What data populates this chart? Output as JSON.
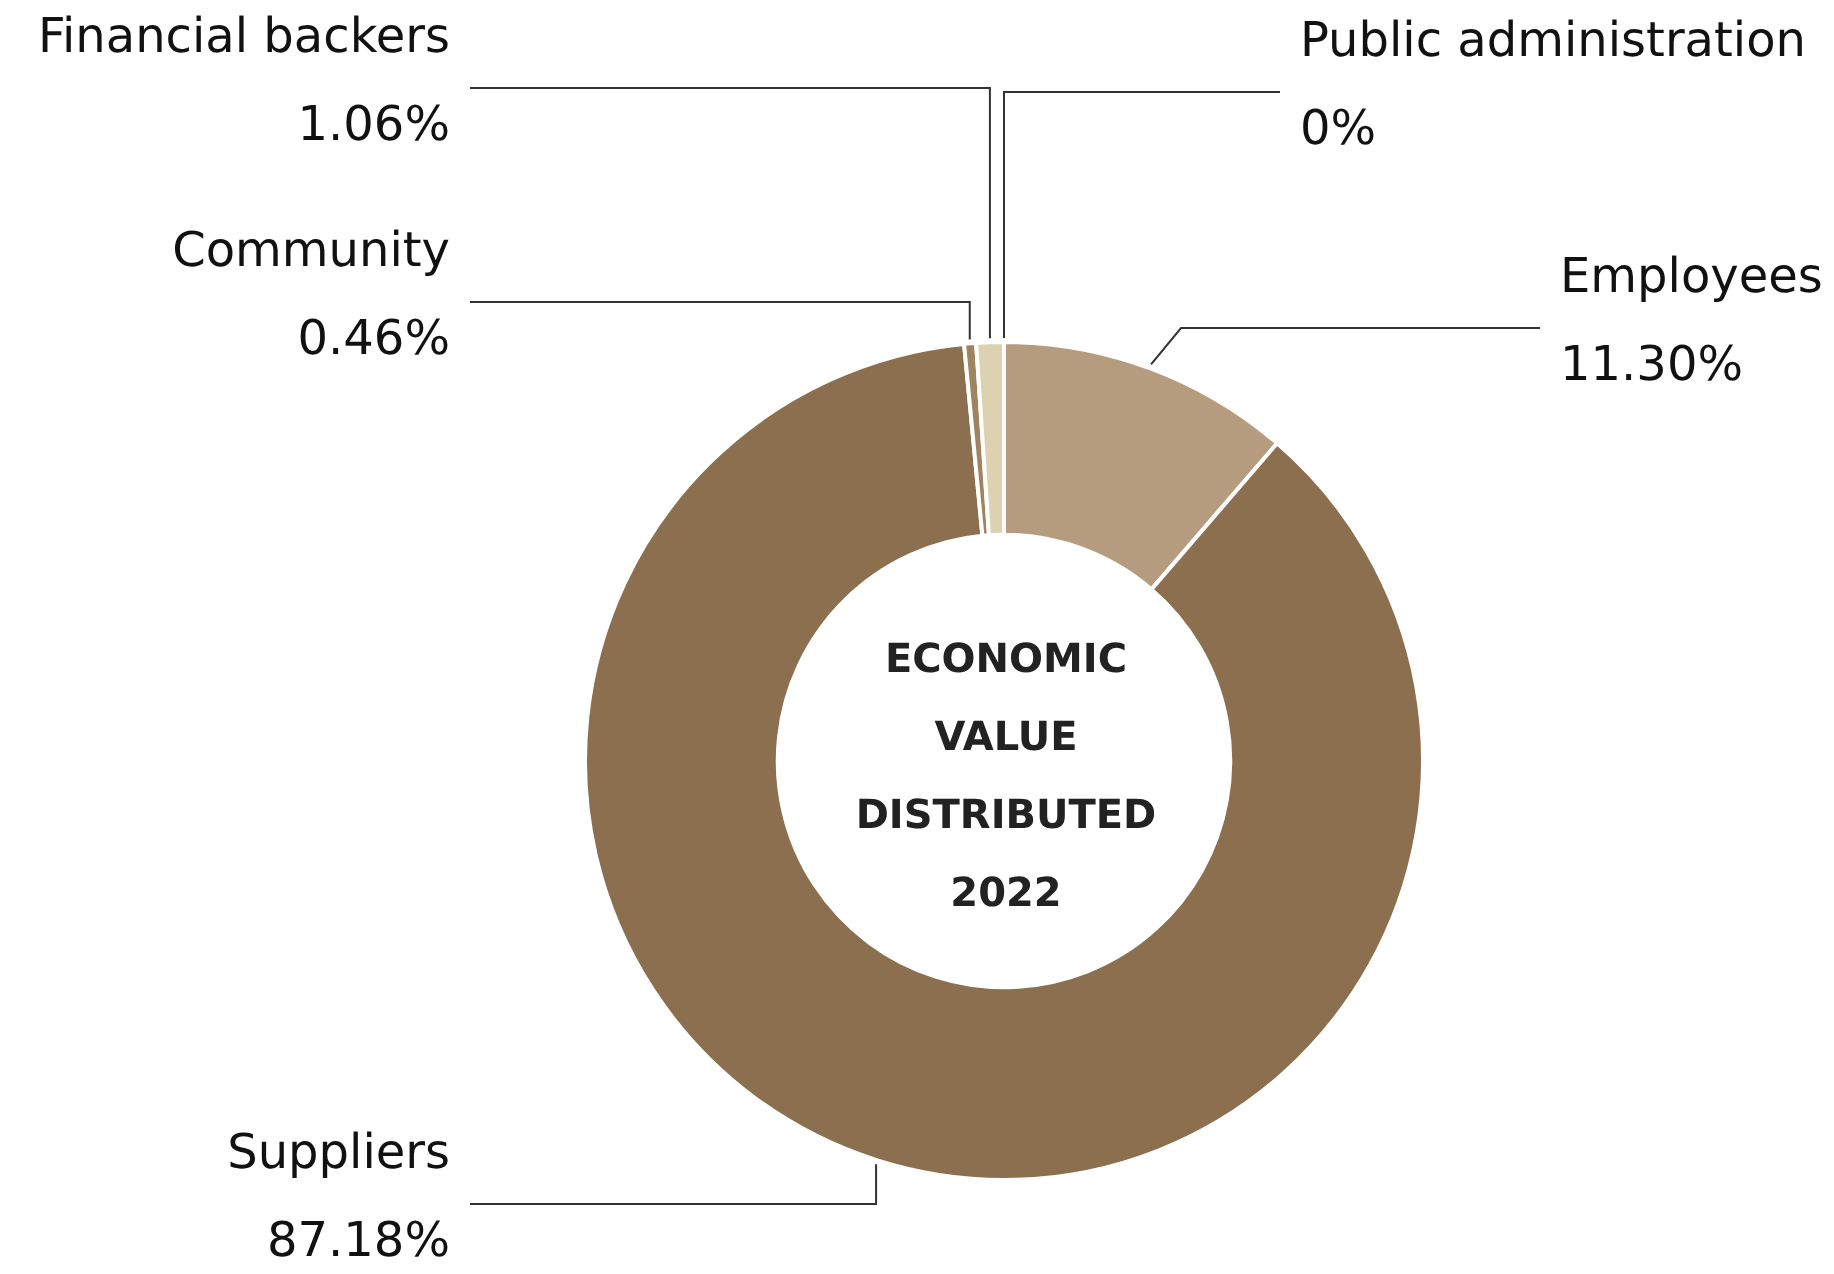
{
  "chart_data": {
    "type": "donut",
    "title": "ECONOMIC VALUE DISTRIBUTED 2022",
    "categories": [
      "Public administration",
      "Employees",
      "Suppliers",
      "Community",
      "Financial backers"
    ],
    "values": [
      0,
      11.3,
      87.18,
      0.46,
      1.06
    ],
    "value_labels": [
      "0%",
      "11.30%",
      "87.18%",
      "0.46%",
      "1.06%"
    ],
    "colors": [
      "#e6dcc0",
      "#b59c7f",
      "#8b6f4e",
      "#a08460",
      "#ddd2b0"
    ],
    "legend": false
  }
}
